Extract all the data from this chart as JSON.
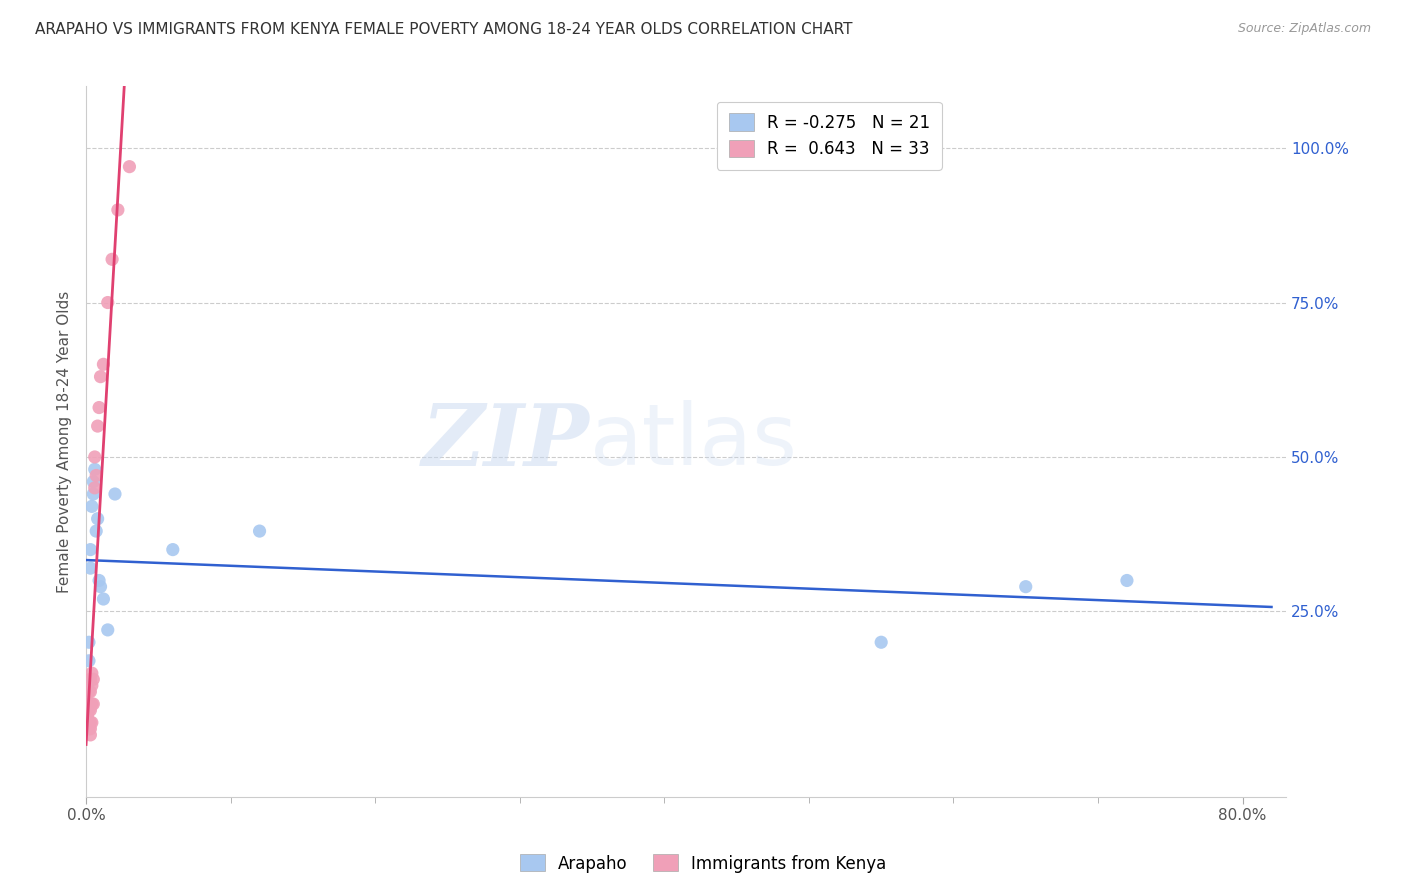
{
  "title": "ARAPAHO VS IMMIGRANTS FROM KENYA FEMALE POVERTY AMONG 18-24 YEAR OLDS CORRELATION CHART",
  "source": "Source: ZipAtlas.com",
  "ylabel": "Female Poverty Among 18-24 Year Olds",
  "xlim": [
    0.0,
    0.83
  ],
  "ylim": [
    -0.05,
    1.1
  ],
  "x_tick_vals": [
    0.0,
    0.8
  ],
  "x_tick_labels": [
    "0.0%",
    "80.0%"
  ],
  "y_tick_vals": [
    0.25,
    0.5,
    0.75,
    1.0
  ],
  "y_tick_labels": [
    "25.0%",
    "50.0%",
    "75.0%",
    "100.0%"
  ],
  "legend_blue_R": "-0.275",
  "legend_blue_N": "21",
  "legend_pink_R": "0.643",
  "legend_pink_N": "33",
  "legend_label_blue": "Arapaho",
  "legend_label_pink": "Immigrants from Kenya",
  "blue_color": "#a8c8f0",
  "pink_color": "#f0a0b8",
  "blue_line_color": "#3060d0",
  "pink_line_color": "#e04070",
  "watermark_zip": "ZIP",
  "watermark_atlas": "atlas",
  "arapaho_x": [
    0.001,
    0.002,
    0.002,
    0.003,
    0.003,
    0.004,
    0.005,
    0.005,
    0.006,
    0.007,
    0.008,
    0.009,
    0.01,
    0.012,
    0.015,
    0.02,
    0.06,
    0.12,
    0.55,
    0.65,
    0.72
  ],
  "arapaho_y": [
    0.13,
    0.17,
    0.2,
    0.32,
    0.35,
    0.42,
    0.44,
    0.46,
    0.48,
    0.38,
    0.4,
    0.3,
    0.29,
    0.27,
    0.22,
    0.44,
    0.35,
    0.38,
    0.2,
    0.29,
    0.3
  ],
  "kenya_x": [
    0.001,
    0.001,
    0.001,
    0.001,
    0.002,
    0.002,
    0.002,
    0.002,
    0.002,
    0.003,
    0.003,
    0.003,
    0.003,
    0.003,
    0.003,
    0.003,
    0.004,
    0.004,
    0.004,
    0.004,
    0.005,
    0.005,
    0.006,
    0.006,
    0.007,
    0.008,
    0.009,
    0.01,
    0.012,
    0.015,
    0.018,
    0.022,
    0.03
  ],
  "kenya_y": [
    0.07,
    0.08,
    0.09,
    0.1,
    0.06,
    0.07,
    0.09,
    0.1,
    0.12,
    0.05,
    0.06,
    0.07,
    0.09,
    0.1,
    0.12,
    0.14,
    0.07,
    0.1,
    0.13,
    0.15,
    0.1,
    0.14,
    0.45,
    0.5,
    0.47,
    0.55,
    0.58,
    0.63,
    0.65,
    0.75,
    0.82,
    0.9,
    0.97
  ],
  "pink_line_x_start": 0.0,
  "pink_line_x_end": 0.035,
  "pink_line_x_dashed_start": 0.03,
  "pink_line_x_dashed_end": 0.085
}
